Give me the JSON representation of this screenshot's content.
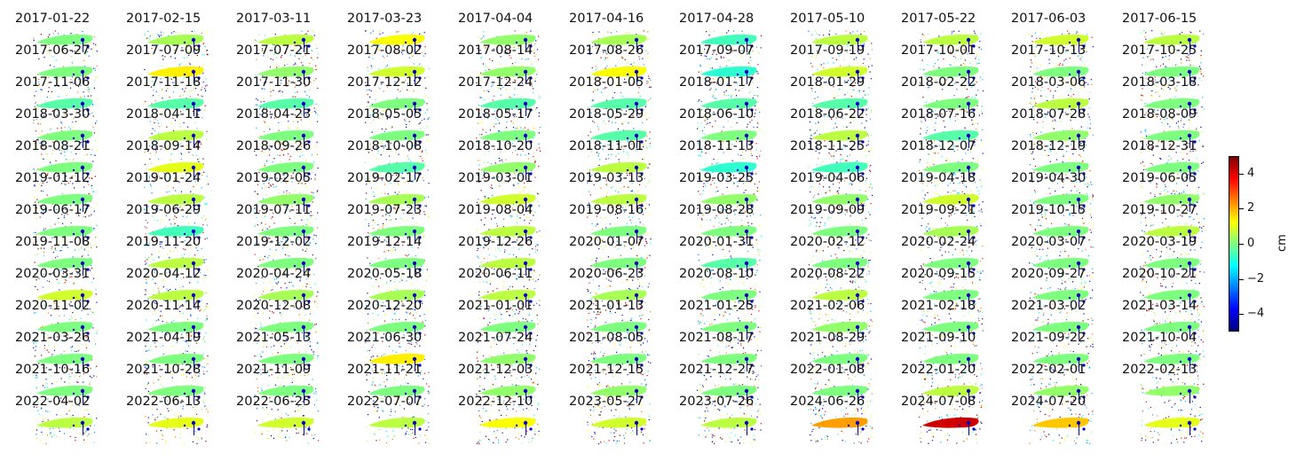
{
  "chart_data": {
    "type": "heatmap",
    "layout": "small multiples grid of displacement maps, 11 columns by 13 rows",
    "dates": [
      "2017-01-22",
      "2017-02-15",
      "2017-03-11",
      "2017-03-23",
      "2017-04-04",
      "2017-04-16",
      "2017-04-28",
      "2017-05-10",
      "2017-05-22",
      "2017-06-03",
      "2017-06-15",
      "2017-06-27",
      "2017-07-09",
      "2017-07-21",
      "2017-08-02",
      "2017-08-14",
      "2017-08-26",
      "2017-09-07",
      "2017-09-19",
      "2017-10-01",
      "2017-10-13",
      "2017-10-25",
      "2017-11-06",
      "2017-11-18",
      "2017-11-30",
      "2017-12-12",
      "2017-12-24",
      "2018-01-05",
      "2018-01-17",
      "2018-01-29",
      "2018-02-22",
      "2018-03-06",
      "2018-03-18",
      "2018-03-30",
      "2018-04-11",
      "2018-04-23",
      "2018-05-05",
      "2018-05-17",
      "2018-05-29",
      "2018-06-10",
      "2018-06-22",
      "2018-07-16",
      "2018-07-28",
      "2018-08-09",
      "2018-08-21",
      "2018-09-14",
      "2018-09-26",
      "2018-10-08",
      "2018-10-20",
      "2018-11-01",
      "2018-11-13",
      "2018-11-25",
      "2018-12-07",
      "2018-12-19",
      "2018-12-31",
      "2019-01-12",
      "2019-01-24",
      "2019-02-05",
      "2019-02-17",
      "2019-03-01",
      "2019-03-13",
      "2019-03-25",
      "2019-04-06",
      "2019-04-18",
      "2019-04-30",
      "2019-06-05",
      "2019-06-17",
      "2019-06-29",
      "2019-07-11",
      "2019-07-23",
      "2019-08-04",
      "2019-08-16",
      "2019-08-28",
      "2019-09-09",
      "2019-09-21",
      "2019-10-15",
      "2019-10-27",
      "2019-11-08",
      "2019-11-20",
      "2019-12-02",
      "2019-12-14",
      "2019-12-26",
      "2020-01-07",
      "2020-01-31",
      "2020-02-12",
      "2020-02-24",
      "2020-03-07",
      "2020-03-19",
      "2020-03-31",
      "2020-04-12",
      "2020-04-24",
      "2020-05-18",
      "2020-06-11",
      "2020-06-23",
      "2020-08-10",
      "2020-08-22",
      "2020-09-15",
      "2020-09-27",
      "2020-10-21",
      "2020-11-02",
      "2020-11-14",
      "2020-12-08",
      "2020-12-20",
      "2021-01-01",
      "2021-01-13",
      "2021-01-25",
      "2021-02-06",
      "2021-02-18",
      "2021-03-02",
      "2021-03-14",
      "2021-03-26",
      "2021-04-19",
      "2021-05-13",
      "2021-06-30",
      "2021-07-24",
      "2021-08-05",
      "2021-08-17",
      "2021-08-29",
      "2021-09-10",
      "2021-09-22",
      "2021-10-04",
      "2021-10-16",
      "2021-10-28",
      "2021-11-09",
      "2021-11-21",
      "2021-12-03",
      "2021-12-15",
      "2021-12-27",
      "2022-01-08",
      "2022-01-20",
      "2022-02-01",
      "2022-02-13",
      "2022-04-02",
      "2022-06-13",
      "2022-06-25",
      "2022-07-07",
      "2022-12-10",
      "2023-05-27",
      "2023-07-26",
      "2024-06-26",
      "2024-07-08",
      "2024-07-20",
      ""
    ],
    "body_values_cm": [
      0,
      0.4,
      0.6,
      1.2,
      0.2,
      0.4,
      -0.6,
      0.6,
      0.6,
      0.8,
      0.6,
      0,
      1.4,
      0.2,
      0.8,
      0.2,
      1.2,
      -0.8,
      0.8,
      0,
      0,
      0,
      -0.4,
      -0.4,
      -0.4,
      0,
      -0.4,
      -0.4,
      -0.4,
      -0.4,
      0,
      0.6,
      0,
      0,
      0.6,
      0,
      0,
      0,
      -0.4,
      0,
      0.6,
      -0.4,
      0.2,
      0,
      0,
      1.0,
      0,
      -0.4,
      0.2,
      0.6,
      -0.8,
      -0.6,
      0,
      0,
      0,
      0,
      0.6,
      0.2,
      0.4,
      0.8,
      0.6,
      0.2,
      0.2,
      0.8,
      0,
      0.2,
      0,
      -0.6,
      0,
      0,
      0.6,
      0,
      0,
      0,
      0.4,
      0,
      0.6,
      0,
      0.6,
      0,
      0,
      0.6,
      0,
      -0.4,
      0,
      0,
      0,
      0,
      0.8,
      0.6,
      0.4,
      0.4,
      0.6,
      0.4,
      0,
      0.6,
      0,
      0,
      0,
      0,
      0,
      0,
      0,
      0,
      0,
      0,
      0.2,
      0,
      0,
      0,
      0,
      0,
      0,
      1.4,
      0.2,
      0,
      0,
      0,
      0,
      0,
      0,
      0,
      0,
      0,
      0,
      0.2,
      0.2,
      0,
      0,
      0.6,
      0.2,
      0.2,
      0.6,
      1.0,
      0.8,
      0.6,
      1.2,
      0.8,
      0.6,
      2.2,
      4.2,
      1.8,
      1.0
    ],
    "colormap": "jet",
    "colorbar": {
      "label": "cm",
      "range": [
        -5,
        5
      ],
      "ticks": [
        4,
        2,
        0,
        -2,
        -4
      ],
      "tick_labels": [
        "4",
        "2",
        "0",
        "−2",
        "−4"
      ],
      "colors": [
        "#00007f",
        "#0000ff",
        "#007fff",
        "#00ffff",
        "#7fff7f",
        "#ffff00",
        "#ff7f00",
        "#ff0000",
        "#7f0000"
      ]
    },
    "axes_visible": false
  }
}
